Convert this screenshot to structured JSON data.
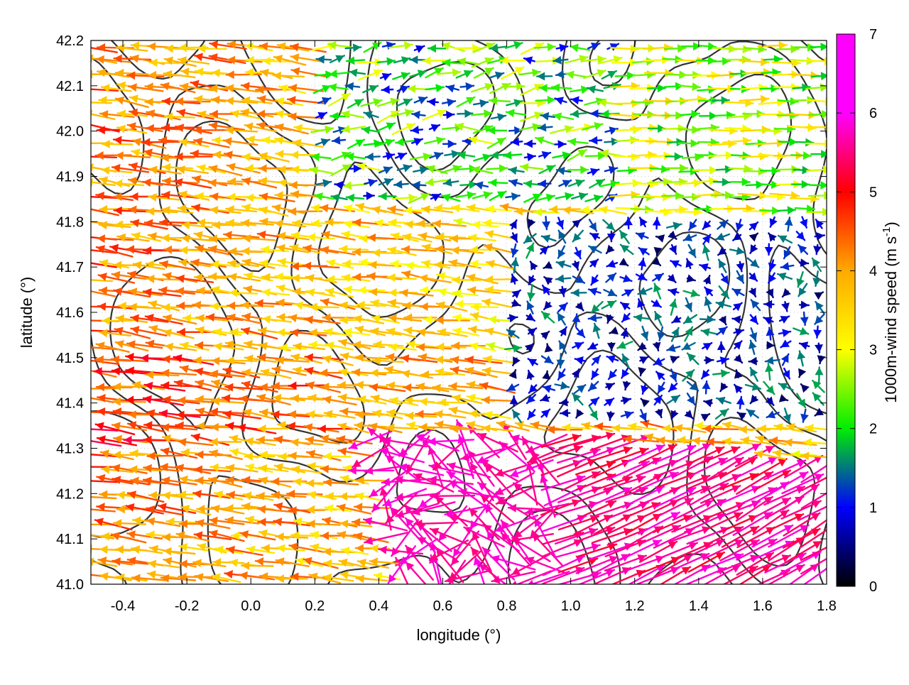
{
  "chart_data": {
    "type": "vector-field",
    "title": "",
    "xlabel": "longitude (°)",
    "ylabel": "latitude (°)",
    "xlim": [
      -0.5,
      1.8
    ],
    "ylim": [
      41.0,
      42.2
    ],
    "x_ticks": [
      "-0.4",
      "-0.2",
      "0.0",
      "0.2",
      "0.4",
      "0.6",
      "0.8",
      "1.0",
      "1.2",
      "1.4",
      "1.6",
      "1.8"
    ],
    "y_ticks": [
      "41.0",
      "41.1",
      "41.2",
      "41.3",
      "41.4",
      "41.5",
      "41.6",
      "41.7",
      "41.8",
      "41.9",
      "42.0",
      "42.1",
      "42.2"
    ],
    "grid": true,
    "colorbar": {
      "label": "1000m-wind speed (m s",
      "label_sup": "-1",
      "label_end": ")",
      "min": 0,
      "max": 7,
      "ticks": [
        "0",
        "1",
        "2",
        "3",
        "4",
        "5",
        "6",
        "7"
      ],
      "colormap": [
        "#000000",
        "#0000ff",
        "#00ee00",
        "#ffff00",
        "#ffaa00",
        "#ff0000",
        "#ff00ff"
      ]
    },
    "contour_color": "#333333",
    "wind_regimes": [
      {
        "name": "westward flow over the west and centre",
        "direction_deg_from_east": 170,
        "speed_ms": [
          3.5,
          5.5
        ]
      },
      {
        "name": "eastward flow in the north-east",
        "direction_deg_from_east": -5,
        "speed_ms": [
          2.0,
          4.0
        ]
      },
      {
        "name": "calm region in the east-centre",
        "speed_ms": [
          0.3,
          1.8
        ]
      },
      {
        "name": "strong north-eastward flow in the south-east",
        "direction_deg_from_east": 25,
        "speed_ms": [
          6.0,
          7.0
        ]
      }
    ]
  }
}
